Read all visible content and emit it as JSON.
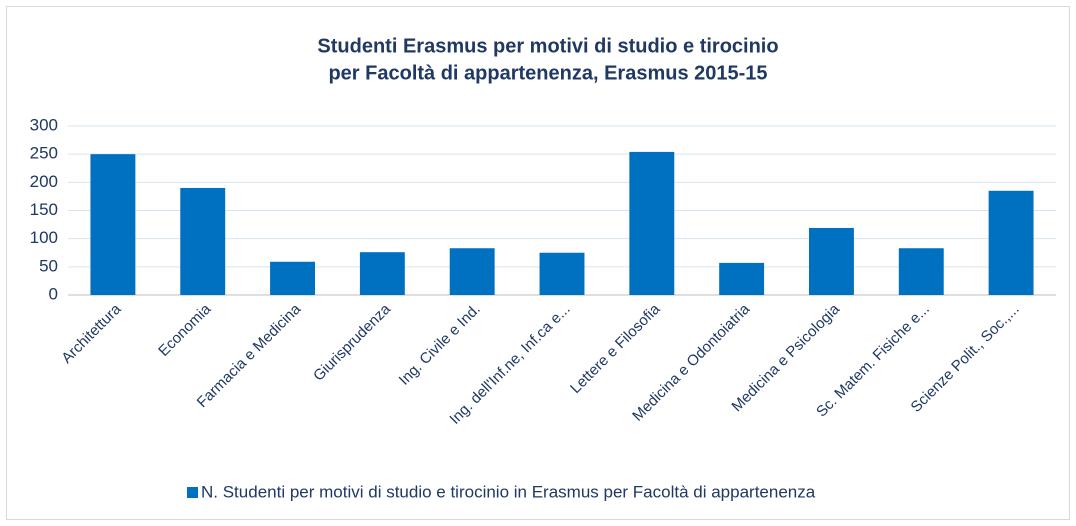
{
  "chart_data": {
    "type": "bar",
    "title": [
      "Studenti Erasmus per motivi di studio e tirocinio",
      "per Facoltà di appartenenza, Erasmus 2015-15"
    ],
    "categories": [
      "Architettura",
      "Economia",
      "Farmacia e Medicina",
      "Giurisprudenza",
      "Ing. Civile e Ind.",
      "Ing. dell'Inf.ne, Inf.ca e...",
      "Lettere e Filosofia",
      "Medicina e Odontoiatria",
      "Medicina e Psicologia",
      "Sc. Matem. Fisiche e...",
      "Scienze Polit., Soc.,..."
    ],
    "series": [
      {
        "name": "N. Studenti per motivi di studio e tirocinio in Erasmus per Facoltà di appartenenza",
        "color": "#0070c0",
        "values": [
          250,
          190,
          59,
          76,
          83,
          75,
          254,
          57,
          119,
          83,
          185
        ]
      }
    ],
    "ylim": [
      0,
      300
    ],
    "yticks": [
      0,
      50,
      100,
      150,
      200,
      250,
      300
    ],
    "grid": true,
    "legend": "bottom"
  }
}
